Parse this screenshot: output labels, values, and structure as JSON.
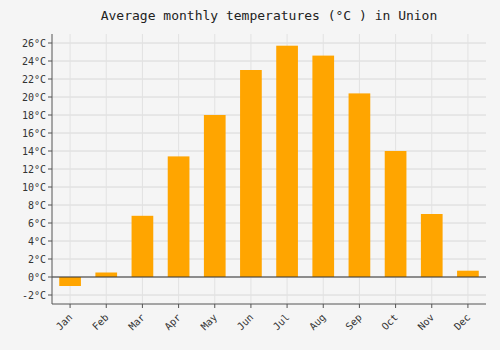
{
  "chart_data": {
    "type": "bar",
    "title": "Average monthly temperatures (°C ) in Union",
    "categories": [
      "Jan",
      "Feb",
      "Mar",
      "Apr",
      "May",
      "Jun",
      "Jul",
      "Aug",
      "Sep",
      "Oct",
      "Nov",
      "Dec"
    ],
    "values": [
      -1.0,
      0.5,
      6.8,
      13.4,
      18.0,
      23.0,
      25.7,
      24.6,
      20.4,
      14.0,
      7.0,
      0.7
    ],
    "color": "#FFA500",
    "ylim": [
      -3,
      27
    ],
    "yticks": [
      {
        "value": -2,
        "label": "-2°C"
      },
      {
        "value": 0,
        "label": "0°C"
      },
      {
        "value": 2,
        "label": "2°C"
      },
      {
        "value": 4,
        "label": "4°C"
      },
      {
        "value": 6,
        "label": "6°C"
      },
      {
        "value": 8,
        "label": "8°C"
      },
      {
        "value": 10,
        "label": "10°C"
      },
      {
        "value": 12,
        "label": "12°C"
      },
      {
        "value": 14,
        "label": "14°C"
      },
      {
        "value": 16,
        "label": "16°C"
      },
      {
        "value": 18,
        "label": "18°C"
      },
      {
        "value": 20,
        "label": "20°C"
      },
      {
        "value": 22,
        "label": "22°C"
      },
      {
        "value": 24,
        "label": "24°C"
      },
      {
        "value": 26,
        "label": "26°C"
      }
    ],
    "grid": true
  }
}
